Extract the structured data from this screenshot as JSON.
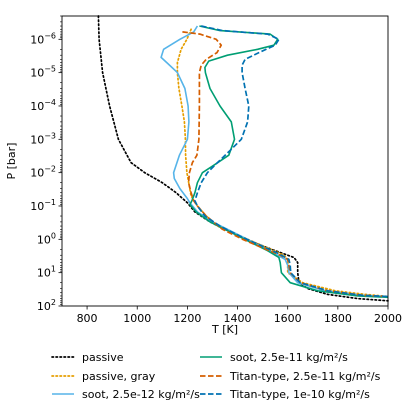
{
  "chart_data": {
    "type": "line",
    "xlabel": "T [K]",
    "ylabel": "P [bar]",
    "xlim": [
      700,
      2000
    ],
    "ylim": [
      100,
      2e-07
    ],
    "yscale": "log",
    "y_inverted": true,
    "xticks": [
      800,
      1000,
      1200,
      1400,
      1600,
      1800,
      2000
    ],
    "xtick_labels": [
      "800",
      "1000",
      "1200",
      "1400",
      "1600",
      "1800",
      "2000"
    ],
    "yticks": [
      1e-06,
      1e-05,
      0.0001,
      0.001,
      0.01,
      0.1,
      1,
      10,
      100
    ],
    "ytick_base": "10",
    "ytick_exponents": [
      "−6",
      "−5",
      "−4",
      "−3",
      "−2",
      "−1",
      "0",
      "1",
      "2"
    ],
    "grid": false,
    "legend_position": "below",
    "series": [
      {
        "name": "passive",
        "color": "#000000",
        "style": "dotted",
        "points": [
          [
            845,
            2e-07
          ],
          [
            848,
            1e-06
          ],
          [
            862,
            1e-05
          ],
          [
            890,
            0.0001
          ],
          [
            925,
            0.001
          ],
          [
            975,
            0.005
          ],
          [
            1030,
            0.01
          ],
          [
            1100,
            0.02
          ],
          [
            1155,
            0.04
          ],
          [
            1200,
            0.08
          ],
          [
            1230,
            0.15
          ],
          [
            1290,
            0.3
          ],
          [
            1370,
            0.6
          ],
          [
            1460,
            1.2
          ],
          [
            1550,
            2.2
          ],
          [
            1600,
            3
          ],
          [
            1625,
            3.5
          ],
          [
            1640,
            5
          ],
          [
            1640,
            10
          ],
          [
            1645,
            20
          ],
          [
            1680,
            30
          ],
          [
            1760,
            45
          ],
          [
            1880,
            60
          ],
          [
            2000,
            70
          ]
        ]
      },
      {
        "name": "passive, gray",
        "color": "#e69f00",
        "style": "dotted",
        "points": [
          [
            1215,
            5e-07
          ],
          [
            1198,
            1e-06
          ],
          [
            1175,
            2e-06
          ],
          [
            1160,
            5e-06
          ],
          [
            1160,
            1e-05
          ],
          [
            1166,
            3e-05
          ],
          [
            1178,
            0.0001
          ],
          [
            1188,
            0.0003
          ],
          [
            1192,
            0.001
          ],
          [
            1193,
            0.003
          ],
          [
            1198,
            0.01
          ],
          [
            1215,
            0.05
          ],
          [
            1240,
            0.1
          ],
          [
            1275,
            0.2
          ],
          [
            1320,
            0.4
          ],
          [
            1395,
            0.7
          ],
          [
            1475,
            1.3
          ],
          [
            1545,
            2.2
          ],
          [
            1585,
            3
          ],
          [
            1600,
            4
          ],
          [
            1600,
            10
          ],
          [
            1660,
            20
          ],
          [
            1790,
            35
          ],
          [
            1910,
            45
          ],
          [
            2000,
            52
          ]
        ]
      },
      {
        "name": "soot, 2.5e-12 kg/m²/s",
        "color": "#56b4e9",
        "style": "solid",
        "points": [
          [
            1240,
            4e-07
          ],
          [
            1225,
            6e-07
          ],
          [
            1170,
            1e-06
          ],
          [
            1105,
            2e-06
          ],
          [
            1095,
            3.5e-06
          ],
          [
            1118,
            5e-06
          ],
          [
            1160,
            1e-05
          ],
          [
            1190,
            3e-05
          ],
          [
            1203,
            0.0001
          ],
          [
            1206,
            0.0003
          ],
          [
            1200,
            0.001
          ],
          [
            1168,
            0.003
          ],
          [
            1145,
            0.01
          ],
          [
            1148,
            0.015
          ],
          [
            1170,
            0.03
          ],
          [
            1200,
            0.06
          ],
          [
            1210,
            0.08
          ],
          [
            1240,
            0.15
          ],
          [
            1300,
            0.3
          ],
          [
            1380,
            0.6
          ],
          [
            1460,
            1.2
          ],
          [
            1540,
            2.5
          ],
          [
            1590,
            4
          ],
          [
            1600,
            6
          ],
          [
            1605,
            10
          ],
          [
            1640,
            20
          ],
          [
            1750,
            35
          ],
          [
            1900,
            48
          ],
          [
            2000,
            52
          ]
        ]
      },
      {
        "name": "soot, 2.5e-11 kg/m²/s",
        "color": "#009e73",
        "style": "solid",
        "points": [
          [
            1248,
            4e-07
          ],
          [
            1330,
            5.5e-07
          ],
          [
            1530,
            7e-07
          ],
          [
            1560,
            1e-06
          ],
          [
            1545,
            1.5e-06
          ],
          [
            1480,
            2e-06
          ],
          [
            1360,
            3e-06
          ],
          [
            1285,
            4.5e-06
          ],
          [
            1270,
            7e-06
          ],
          [
            1272,
            1e-05
          ],
          [
            1290,
            3e-05
          ],
          [
            1330,
            0.0001
          ],
          [
            1375,
            0.0003
          ],
          [
            1388,
            0.001
          ],
          [
            1365,
            0.003
          ],
          [
            1305,
            0.006
          ],
          [
            1260,
            0.01
          ],
          [
            1240,
            0.02
          ],
          [
            1230,
            0.04
          ],
          [
            1218,
            0.07
          ],
          [
            1210,
            0.09
          ],
          [
            1235,
            0.15
          ],
          [
            1290,
            0.3
          ],
          [
            1370,
            0.6
          ],
          [
            1450,
            1.2
          ],
          [
            1520,
            2.2
          ],
          [
            1565,
            3.5
          ],
          [
            1570,
            5
          ],
          [
            1575,
            10
          ],
          [
            1610,
            20
          ],
          [
            1720,
            35
          ],
          [
            1880,
            50
          ],
          [
            2000,
            55
          ]
        ]
      },
      {
        "name": "Titan-type, 2.5e-11 kg/m²/s",
        "color": "#d55e00",
        "style": "dashed",
        "points": [
          [
            1180,
            6e-07
          ],
          [
            1250,
            7e-07
          ],
          [
            1315,
            1e-06
          ],
          [
            1335,
            1.5e-06
          ],
          [
            1318,
            2.5e-06
          ],
          [
            1275,
            4e-06
          ],
          [
            1255,
            6e-06
          ],
          [
            1248,
            1e-05
          ],
          [
            1248,
            0.0001
          ],
          [
            1246,
            0.001
          ],
          [
            1238,
            0.003
          ],
          [
            1220,
            0.005
          ],
          [
            1208,
            0.01
          ],
          [
            1205,
            0.02
          ],
          [
            1215,
            0.04
          ],
          [
            1225,
            0.07
          ],
          [
            1240,
            0.1
          ],
          [
            1275,
            0.2
          ],
          [
            1340,
            0.5
          ],
          [
            1420,
            1
          ],
          [
            1500,
            1.8
          ],
          [
            1570,
            3
          ],
          [
            1600,
            4
          ],
          [
            1605,
            6
          ],
          [
            1610,
            10
          ],
          [
            1650,
            20
          ],
          [
            1760,
            35
          ],
          [
            1900,
            48
          ],
          [
            2000,
            52
          ]
        ]
      },
      {
        "name": "Titan-type, 1e-10 kg/m²/s",
        "color": "#0072b2",
        "style": "dashed",
        "points": [
          [
            1255,
            4e-07
          ],
          [
            1340,
            5.5e-07
          ],
          [
            1520,
            7e-07
          ],
          [
            1565,
            1e-06
          ],
          [
            1550,
            1.5e-06
          ],
          [
            1485,
            2.5e-06
          ],
          [
            1430,
            4e-06
          ],
          [
            1418,
            6e-06
          ],
          [
            1418,
            1e-05
          ],
          [
            1430,
            3e-05
          ],
          [
            1445,
            0.0001
          ],
          [
            1440,
            0.0003
          ],
          [
            1415,
            0.001
          ],
          [
            1375,
            0.002
          ],
          [
            1320,
            0.005
          ],
          [
            1280,
            0.01
          ],
          [
            1255,
            0.02
          ],
          [
            1240,
            0.04
          ],
          [
            1230,
            0.07
          ],
          [
            1240,
            0.1
          ],
          [
            1270,
            0.2
          ],
          [
            1330,
            0.4
          ],
          [
            1410,
            0.8
          ],
          [
            1490,
            1.5
          ],
          [
            1560,
            2.6
          ],
          [
            1605,
            4
          ],
          [
            1610,
            6
          ],
          [
            1612,
            10
          ],
          [
            1650,
            20
          ],
          [
            1760,
            35
          ],
          [
            1900,
            48
          ],
          [
            2000,
            52
          ]
        ]
      }
    ]
  }
}
